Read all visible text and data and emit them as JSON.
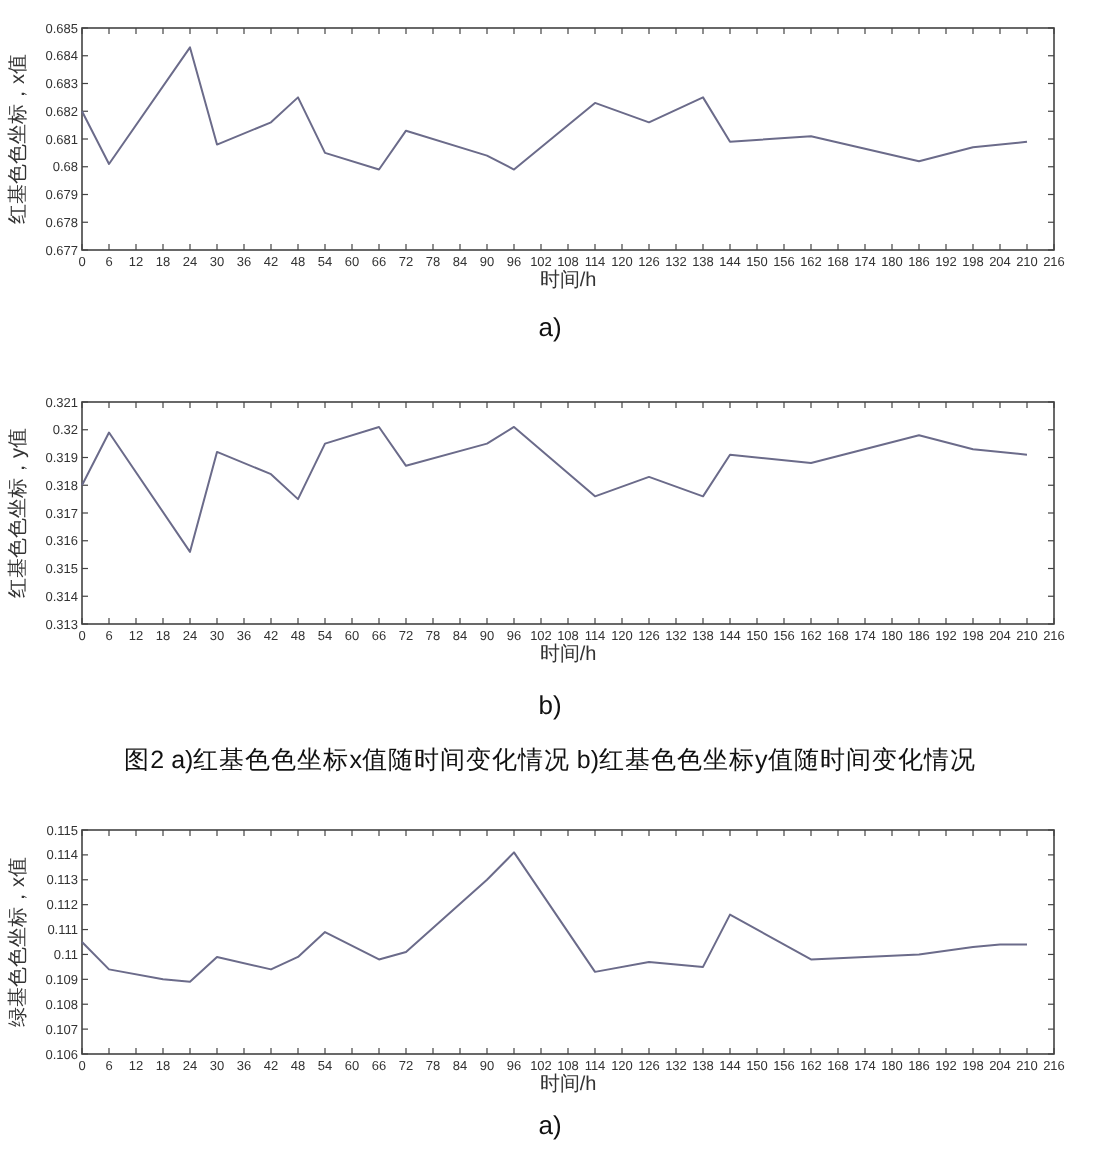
{
  "chart_data": [
    {
      "type": "line",
      "ylabel": "红基色色坐标，x值",
      "xlabel": "时间/h",
      "annotations": [
        "a)"
      ],
      "x": [
        0,
        6,
        24,
        30,
        42,
        48,
        54,
        66,
        72,
        90,
        96,
        114,
        126,
        138,
        144,
        162,
        186,
        198,
        210
      ],
      "series": [
        {
          "color": "#6b6b8a",
          "values": [
            0.682,
            0.6801,
            0.6843,
            0.6808,
            0.6816,
            0.6825,
            0.6805,
            0.6799,
            0.6813,
            0.6804,
            0.6799,
            0.6823,
            0.6816,
            0.6825,
            0.6809,
            0.6811,
            0.6802,
            0.6807,
            0.6809
          ]
        }
      ],
      "xlim": [
        0,
        216
      ],
      "xticks": [
        0,
        6,
        12,
        18,
        24,
        30,
        36,
        42,
        48,
        54,
        60,
        66,
        72,
        78,
        84,
        90,
        96,
        102,
        108,
        114,
        120,
        126,
        132,
        138,
        144,
        150,
        156,
        162,
        168,
        174,
        180,
        186,
        192,
        198,
        204,
        210,
        216
      ],
      "ylim": [
        0.677,
        0.685
      ],
      "yticks": [
        0.677,
        0.678,
        0.679,
        {
          "value": 0.68,
          "label": "0.68"
        },
        0.681,
        0.682,
        0.683,
        0.684,
        0.685
      ],
      "marker": "none",
      "line_style": "solid"
    },
    {
      "type": "line",
      "ylabel": "红基色色坐标，y值",
      "xlabel": "时间/h",
      "annotations": [
        "b)",
        "图2 a)红基色色坐标x值随时间变化情况  b)红基色色坐标y值随时间变化情况"
      ],
      "x": [
        0,
        6,
        24,
        30,
        42,
        48,
        54,
        66,
        72,
        90,
        96,
        114,
        126,
        138,
        144,
        162,
        186,
        198,
        210
      ],
      "series": [
        {
          "color": "#6b6b8a",
          "values": [
            0.318,
            0.3199,
            0.3156,
            0.3192,
            0.3184,
            0.3175,
            0.3195,
            0.3201,
            0.3187,
            0.3195,
            0.3201,
            0.3176,
            0.3183,
            0.3176,
            0.3191,
            0.3188,
            0.3198,
            0.3193,
            0.3191
          ]
        }
      ],
      "xlim": [
        0,
        216
      ],
      "xticks": [
        0,
        6,
        12,
        18,
        24,
        30,
        36,
        42,
        48,
        54,
        60,
        66,
        72,
        78,
        84,
        90,
        96,
        102,
        108,
        114,
        120,
        126,
        132,
        138,
        144,
        150,
        156,
        162,
        168,
        174,
        180,
        186,
        192,
        198,
        204,
        210,
        216
      ],
      "ylim": [
        0.313,
        0.321
      ],
      "yticks": [
        0.313,
        0.314,
        0.315,
        0.316,
        0.317,
        0.318,
        0.319,
        {
          "value": 0.32,
          "label": "0.32"
        },
        0.321
      ],
      "marker": "none",
      "line_style": "solid"
    },
    {
      "type": "line",
      "ylabel": "绿基色色坐标，x值",
      "xlabel": "时间/h",
      "annotations": [
        "a)"
      ],
      "x": [
        0,
        6,
        18,
        24,
        30,
        42,
        48,
        54,
        66,
        72,
        90,
        96,
        114,
        126,
        138,
        144,
        162,
        186,
        198,
        204,
        210
      ],
      "series": [
        {
          "color": "#6b6b8a",
          "values": [
            0.1105,
            0.1094,
            0.109,
            0.1089,
            0.1099,
            0.1094,
            0.1099,
            0.1109,
            0.1098,
            0.1101,
            0.113,
            0.1141,
            0.1093,
            0.1097,
            0.1095,
            0.1116,
            0.1098,
            0.11,
            0.1103,
            0.1104,
            0.1104
          ]
        }
      ],
      "xlim": [
        0,
        216
      ],
      "xticks": [
        0,
        6,
        12,
        18,
        24,
        30,
        36,
        42,
        48,
        54,
        60,
        66,
        72,
        78,
        84,
        90,
        96,
        102,
        108,
        114,
        120,
        126,
        132,
        138,
        144,
        150,
        156,
        162,
        168,
        174,
        180,
        186,
        192,
        198,
        204,
        210,
        216
      ],
      "ylim": [
        0.106,
        0.115
      ],
      "yticks": [
        0.106,
        0.107,
        0.108,
        0.109,
        {
          "value": 0.11,
          "label": "0.11"
        },
        0.111,
        0.112,
        0.113,
        0.114,
        0.115
      ],
      "marker": "none",
      "line_style": "solid"
    }
  ]
}
